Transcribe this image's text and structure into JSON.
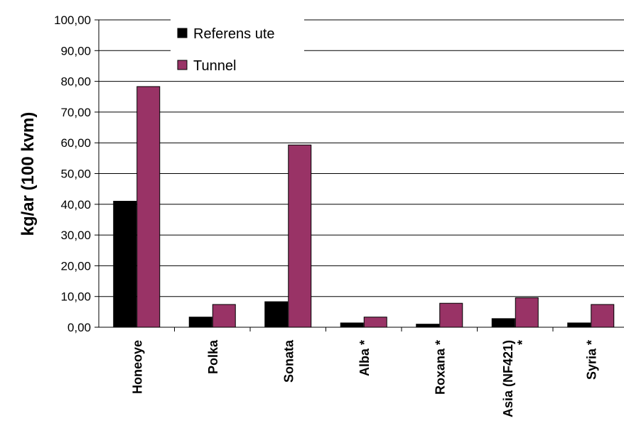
{
  "chart_data": {
    "type": "bar",
    "ylabel": "kg/ar (100 kvm)",
    "ylim": [
      0,
      100
    ],
    "y_ticks": [
      "0,00",
      "10,00",
      "20,00",
      "30,00",
      "40,00",
      "50,00",
      "60,00",
      "70,00",
      "80,00",
      "90,00",
      "100,00"
    ],
    "grid": true,
    "legend_position": "top-left",
    "categories": [
      "Honeoye",
      "Polka",
      "Sonata",
      "Alba *",
      "Roxana *",
      "Asia (NF421) *",
      "Syria *"
    ],
    "series": [
      {
        "name": "Referens ute",
        "color": "#000000",
        "values": [
          41.0,
          3.3,
          8.3,
          1.4,
          1.0,
          2.8,
          1.4
        ]
      },
      {
        "name": "Tunnel",
        "color": "#993366",
        "values": [
          78.3,
          7.4,
          59.3,
          3.3,
          7.8,
          9.6,
          7.4
        ]
      }
    ]
  }
}
